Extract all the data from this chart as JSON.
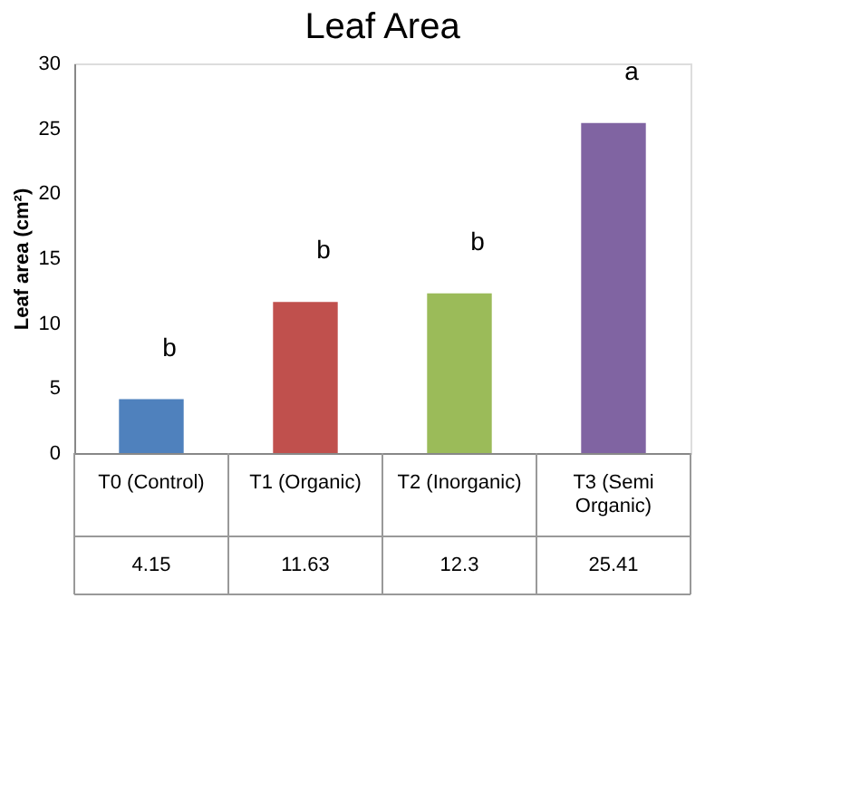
{
  "chart_data": {
    "type": "bar",
    "title": "Leaf Area",
    "ylabel": "Leaf area (cm²)",
    "categories": [
      "T0 (Control)",
      "T1 (Organic)",
      "T2 (Inorganic)",
      "T3 (Semi Organic)"
    ],
    "values": [
      4.15,
      11.63,
      12.3,
      25.41
    ],
    "colors": [
      "#4f81bd",
      "#c0504d",
      "#9bbb59",
      "#8064a2"
    ],
    "ylim": [
      0,
      30
    ],
    "yticks": [
      0,
      5,
      10,
      15,
      20,
      25,
      30
    ],
    "grid": false,
    "data_labels": true,
    "annotations": [
      "b",
      "b",
      "b",
      "a"
    ]
  }
}
